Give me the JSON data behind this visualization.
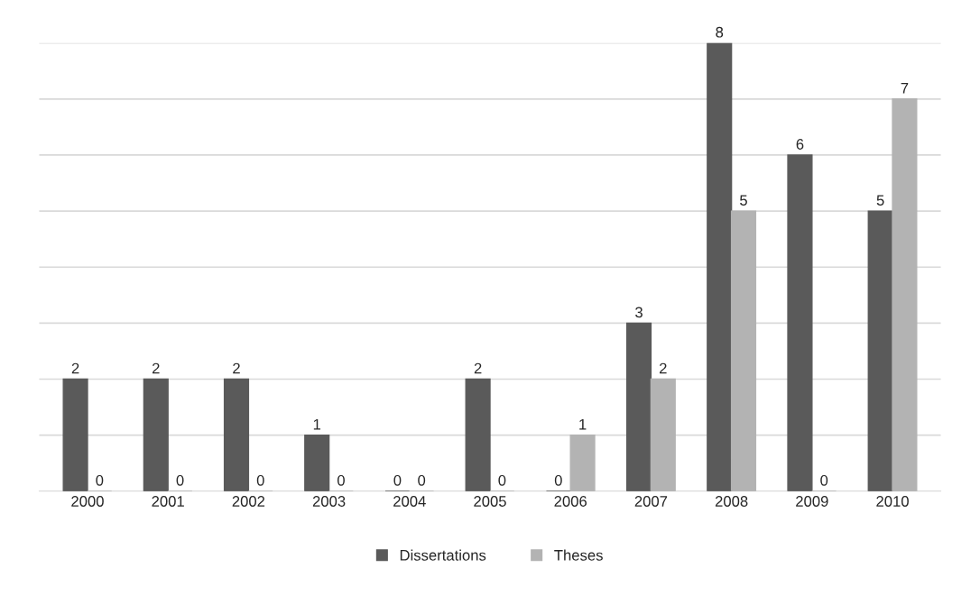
{
  "chart_data": {
    "type": "bar",
    "categories": [
      "2000",
      "2001",
      "2002",
      "2003",
      "2004",
      "2005",
      "2006",
      "2007",
      "2008",
      "2009",
      "2010"
    ],
    "series": [
      {
        "name": "Dissertations",
        "color": "#5a5a5a",
        "values": [
          2,
          2,
          2,
          1,
          0,
          2,
          0,
          3,
          8,
          6,
          5
        ]
      },
      {
        "name": "Theses",
        "color": "#b3b3b3",
        "values": [
          0,
          0,
          0,
          0,
          0,
          0,
          1,
          2,
          5,
          0,
          7
        ]
      }
    ],
    "ylim": [
      0,
      8
    ],
    "yticks": [
      {
        "value": 0,
        "label": null
      },
      {
        "value": 1,
        "label": null
      },
      {
        "value": 2,
        "label": null
      },
      {
        "value": 3,
        "label": null
      },
      {
        "value": 4,
        "label": null
      },
      {
        "value": 5,
        "label": null
      },
      {
        "value": 6,
        "label": null
      },
      {
        "value": 7,
        "label": null
      },
      {
        "value": 8,
        "label": null
      }
    ],
    "tick_labels": "x",
    "grid": "y",
    "data_labels": true,
    "legend": "bottom"
  }
}
